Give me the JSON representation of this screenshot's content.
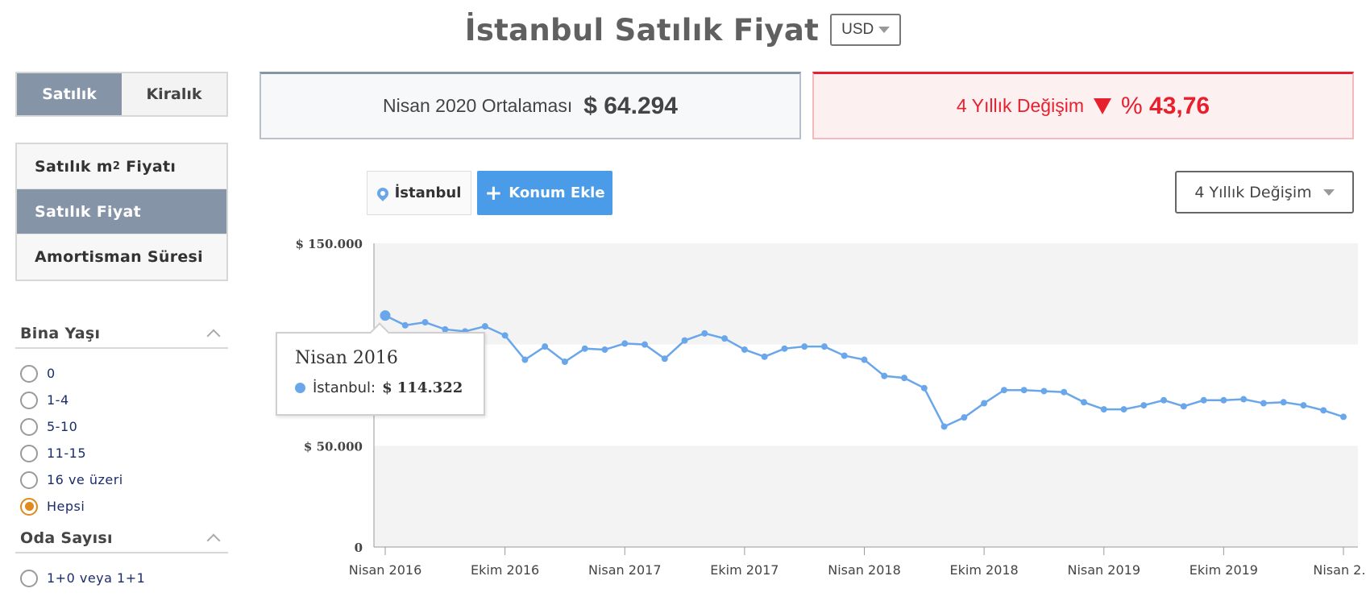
{
  "header": {
    "title": "İstanbul Satılık Fiyat",
    "currency": "USD"
  },
  "sidebar": {
    "toggle": [
      {
        "label": "Satılık",
        "active": true
      },
      {
        "label": "Kiralık",
        "active": false
      }
    ],
    "menu": {
      "item1_label": "Satılık m",
      "item1_sup": "2",
      "item1_suffix": " Fiyatı",
      "item2_label": "Satılık Fiyat",
      "item3_label": "Amortisman Süresi"
    },
    "filter_building_age": {
      "title": "Bina Yaşı",
      "options": [
        "0",
        "1-4",
        "5-10",
        "11-15",
        "16 ve üzeri",
        "Hepsi"
      ],
      "selected": "Hepsi"
    },
    "filter_rooms": {
      "title": "Oda Sayısı",
      "options": [
        "1+0 veya 1+1"
      ]
    }
  },
  "summary": {
    "average_label": "Nisan 2020 Ortalaması",
    "average_value": "$ 64.294",
    "change_label": "4 Yıllık Değişim",
    "change_prefix": "%",
    "change_value": "43,76"
  },
  "controls": {
    "location": "İstanbul",
    "add_location": "Konum Ekle",
    "period": "4 Yıllık Değişim"
  },
  "colors": {
    "accent": "#8694a8",
    "series": "#6aa7ea",
    "negative": "#e8202e",
    "button": "#4a9be8",
    "radio_selected": "#e08a1e"
  },
  "tooltip": {
    "title": "Nisan 2016",
    "series": "İstanbul:",
    "value": "$ 114.322"
  },
  "chart_data": {
    "type": "line",
    "y_ticks": [
      "$ 150.000",
      "$ 50.000",
      "0"
    ],
    "ylim": [
      0,
      150000
    ],
    "x_ticks": [
      "Nisan 2016",
      "Ekim 2016",
      "Nisan 2017",
      "Ekim 2017",
      "Nisan 2018",
      "Ekim 2018",
      "Nisan 2019",
      "Ekim 2019",
      "Nisan 2..."
    ],
    "x": [
      "Nis 2016",
      "May 2016",
      "Haz 2016",
      "Tem 2016",
      "Ağu 2016",
      "Eyl 2016",
      "Eki 2016",
      "Kas 2016",
      "Ara 2016",
      "Oca 2017",
      "Şub 2017",
      "Mar 2017",
      "Nis 2017",
      "May 2017",
      "Haz 2017",
      "Tem 2017",
      "Ağu 2017",
      "Eyl 2017",
      "Eki 2017",
      "Kas 2017",
      "Ara 2017",
      "Oca 2018",
      "Şub 2018",
      "Mar 2018",
      "Nis 2018",
      "May 2018",
      "Haz 2018",
      "Tem 2018",
      "Ağu 2018",
      "Eyl 2018",
      "Eki 2018",
      "Kas 2018",
      "Ara 2018",
      "Oca 2019",
      "Şub 2019",
      "Mar 2019",
      "Nis 2019",
      "May 2019",
      "Haz 2019",
      "Tem 2019",
      "Ağu 2019",
      "Eyl 2019",
      "Eki 2019",
      "Kas 2019",
      "Ara 2019",
      "Oca 2020",
      "Şub 2020",
      "Mar 2020",
      "Nis 2020"
    ],
    "series": [
      {
        "name": "İstanbul",
        "values": [
          114322,
          109500,
          111000,
          107500,
          106500,
          109000,
          104500,
          92500,
          99000,
          91500,
          98000,
          97500,
          100500,
          100000,
          93000,
          102000,
          105500,
          103000,
          97500,
          94000,
          98000,
          99000,
          99000,
          94500,
          92500,
          84500,
          83500,
          78500,
          59500,
          64000,
          71000,
          77500,
          77500,
          77000,
          76500,
          71500,
          68000,
          68000,
          70000,
          72500,
          69500,
          72500,
          72500,
          73000,
          71000,
          71500,
          70000,
          67500,
          64294
        ]
      }
    ]
  }
}
